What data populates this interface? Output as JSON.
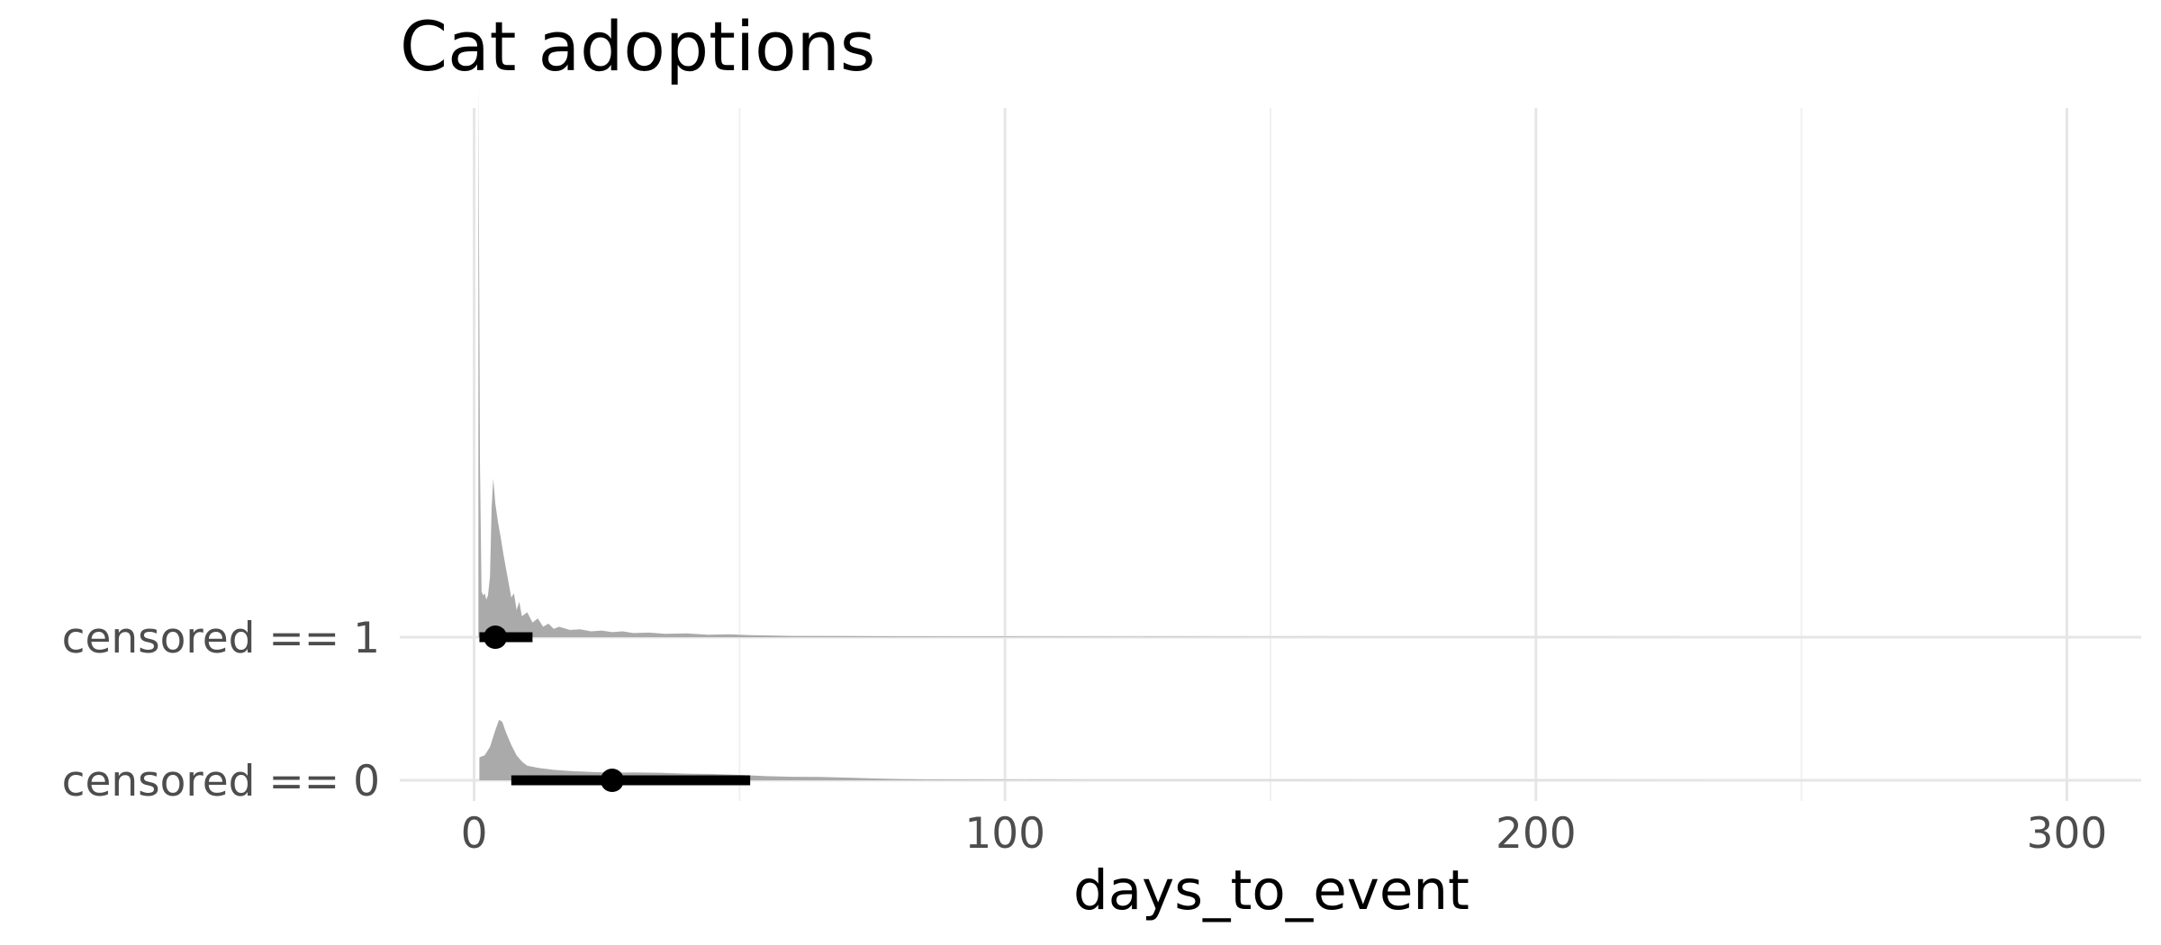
{
  "chart_data": {
    "type": "area",
    "title": "Cat adoptions",
    "xlabel": "days_to_event",
    "ylabel": "",
    "xlim": [
      -14,
      314
    ],
    "x_ticks": [
      0,
      100,
      200,
      300
    ],
    "x_tick_labels": [
      "0",
      "100",
      "200",
      "300"
    ],
    "x_minor_ticks": [
      50,
      150,
      250
    ],
    "categories": [
      "censored == 0",
      "censored == 1"
    ],
    "grid": true,
    "legend": "none",
    "colors": {
      "density": "#aaaaaa",
      "interval": "#000000",
      "grid": "#e6e6e6"
    },
    "series": [
      {
        "name": "censored == 0",
        "point": 26,
        "interval": [
          7,
          52
        ],
        "density": [
          [
            1,
            0.11
          ],
          [
            2,
            0.12
          ],
          [
            3,
            0.16
          ],
          [
            4,
            0.24
          ],
          [
            4.7,
            0.29
          ],
          [
            5.3,
            0.28
          ],
          [
            6,
            0.23
          ],
          [
            7,
            0.17
          ],
          [
            8,
            0.12
          ],
          [
            9,
            0.09
          ],
          [
            10,
            0.07
          ],
          [
            12,
            0.06
          ],
          [
            15,
            0.05
          ],
          [
            18,
            0.045
          ],
          [
            22,
            0.04
          ],
          [
            26,
            0.036
          ],
          [
            30,
            0.038
          ],
          [
            35,
            0.036
          ],
          [
            40,
            0.032
          ],
          [
            45,
            0.03
          ],
          [
            50,
            0.026
          ],
          [
            55,
            0.02
          ],
          [
            60,
            0.017
          ],
          [
            65,
            0.016
          ],
          [
            70,
            0.013
          ],
          [
            75,
            0.009
          ],
          [
            80,
            0.006
          ],
          [
            85,
            0.004
          ],
          [
            90,
            0.003
          ],
          [
            100,
            0.002
          ],
          [
            115,
            0.0015
          ],
          [
            130,
            0.001
          ],
          [
            150,
            0.0008
          ],
          [
            200,
            0.0004
          ],
          [
            250,
            0.0002
          ],
          [
            300,
            0.0001
          ]
        ]
      },
      {
        "name": "censored == 1",
        "point": 4,
        "interval": [
          1,
          11
        ],
        "density": [
          [
            0.8,
            2.67
          ],
          [
            1.1,
            0.85
          ],
          [
            1.4,
            0.22
          ],
          [
            1.7,
            0.2
          ],
          [
            2.0,
            0.21
          ],
          [
            2.3,
            0.18
          ],
          [
            2.6,
            0.2
          ],
          [
            3.0,
            0.29
          ],
          [
            3.3,
            0.62
          ],
          [
            3.6,
            0.76
          ],
          [
            4.0,
            0.64
          ],
          [
            4.5,
            0.55
          ],
          [
            5.0,
            0.48
          ],
          [
            5.5,
            0.4
          ],
          [
            6.0,
            0.33
          ],
          [
            6.5,
            0.26
          ],
          [
            7.0,
            0.19
          ],
          [
            7.5,
            0.21
          ],
          [
            8.0,
            0.13
          ],
          [
            8.5,
            0.17
          ],
          [
            9.0,
            0.1
          ],
          [
            10,
            0.12
          ],
          [
            11,
            0.07
          ],
          [
            12,
            0.09
          ],
          [
            13,
            0.05
          ],
          [
            14,
            0.065
          ],
          [
            15,
            0.04
          ],
          [
            16,
            0.05
          ],
          [
            18,
            0.035
          ],
          [
            20,
            0.038
          ],
          [
            22,
            0.028
          ],
          [
            24,
            0.032
          ],
          [
            26,
            0.024
          ],
          [
            28,
            0.028
          ],
          [
            30,
            0.02
          ],
          [
            33,
            0.022
          ],
          [
            36,
            0.016
          ],
          [
            40,
            0.018
          ],
          [
            44,
            0.012
          ],
          [
            48,
            0.014
          ],
          [
            52,
            0.01
          ],
          [
            56,
            0.008
          ],
          [
            60,
            0.006
          ],
          [
            70,
            0.005
          ],
          [
            80,
            0.004
          ],
          [
            90,
            0.003
          ],
          [
            100,
            0.003
          ],
          [
            120,
            0.002
          ],
          [
            150,
            0.001
          ],
          [
            200,
            0.0005
          ],
          [
            250,
            0.0002
          ],
          [
            300,
            0.0001
          ]
        ]
      }
    ]
  }
}
